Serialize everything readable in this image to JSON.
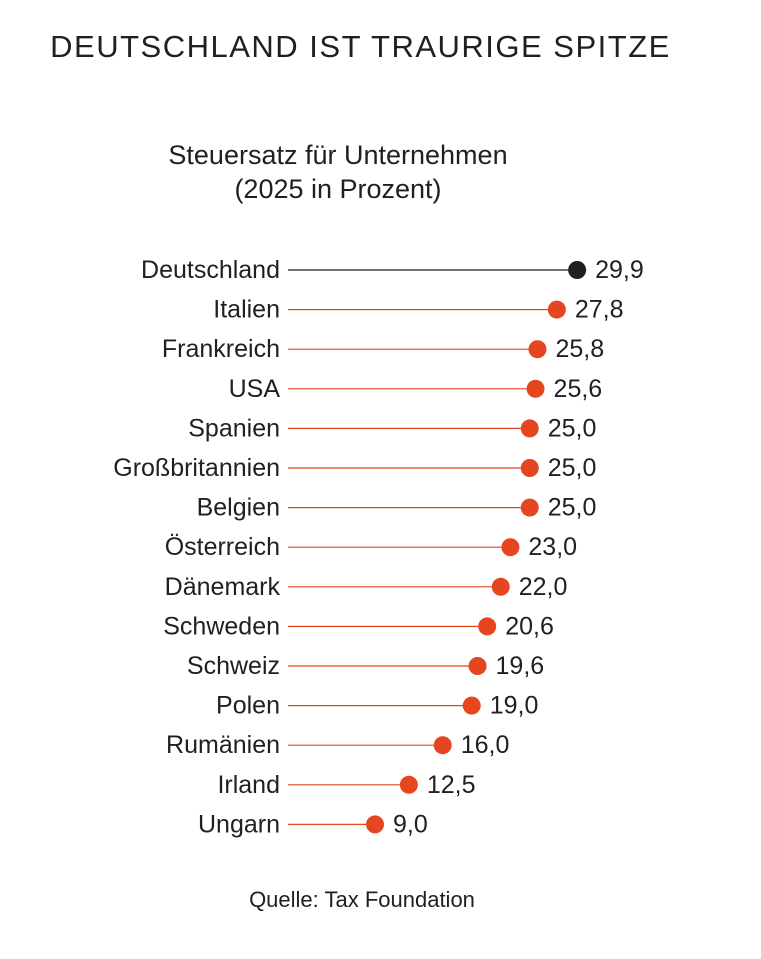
{
  "chart_data": {
    "type": "lollipop",
    "title": "DEUTSCHLAND IST TRAURIGE SPITZE",
    "subtitle": [
      "Steuersatz für Unternehmen",
      "(2025 in  Prozent)"
    ],
    "categories": [
      "Deutschland",
      "Italien",
      "Frankreich",
      "USA",
      "Spanien",
      "Großbritannien",
      "Belgien",
      "Österreich",
      "Dänemark",
      "Schweden",
      "Schweiz",
      "Polen",
      "Rumänien",
      "Irland",
      "Ungarn"
    ],
    "values": [
      29.9,
      27.8,
      25.8,
      25.6,
      25.0,
      25.0,
      25.0,
      23.0,
      22.0,
      20.6,
      19.6,
      19.0,
      16.0,
      12.5,
      9.0
    ],
    "value_labels": [
      "29,9",
      "27,8",
      "25,8",
      "25,6",
      "25,0",
      "25,0",
      "25,0",
      "23,0",
      "22,0",
      "20,6",
      "19,6",
      "19,0",
      "16,0",
      "12,5",
      "9,0"
    ],
    "highlight_category": "Deutschland",
    "source": "Quelle: Tax Foundation",
    "xlabel": "",
    "ylabel": "",
    "xlim": [
      0,
      30
    ]
  },
  "colors": {
    "highlight": "#1f1f24",
    "accent": "#e5461f",
    "text": "#1f1f24"
  }
}
